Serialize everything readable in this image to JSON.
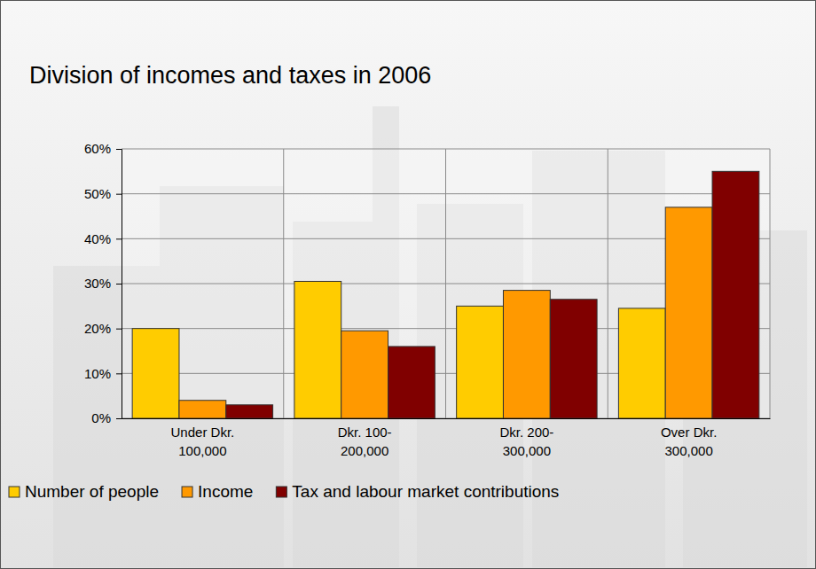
{
  "chart_data": {
    "type": "bar",
    "title": "Division of incomes and taxes in 2006",
    "categories": [
      "Under Dkr. 100,000",
      "Dkr. 100-200,000",
      "Dkr. 200-300,000",
      "Over Dkr. 300,000"
    ],
    "series": [
      {
        "name": "Number of people",
        "color": "#ffcc00",
        "values": [
          20,
          30.5,
          25,
          24.5
        ]
      },
      {
        "name": "Income",
        "color": "#ff9900",
        "values": [
          4,
          19.5,
          28.5,
          47
        ]
      },
      {
        "name": "Tax and labour market contributions",
        "color": "#800000",
        "values": [
          3,
          16,
          26.5,
          55
        ]
      }
    ],
    "ylim": [
      0,
      60
    ],
    "yticks": [
      {
        "value": 0,
        "label": "0%"
      },
      {
        "value": 10,
        "label": "10%"
      },
      {
        "value": 20,
        "label": "20%"
      },
      {
        "value": 30,
        "label": "30%"
      },
      {
        "value": 40,
        "label": "40%"
      },
      {
        "value": 50,
        "label": "50%"
      },
      {
        "value": 60,
        "label": "60%"
      }
    ],
    "grid": true,
    "legend": "bottom"
  }
}
